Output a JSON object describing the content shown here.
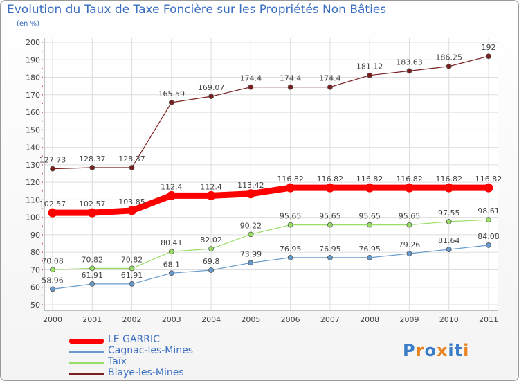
{
  "title": "Evolution du Taux de Taxe Foncière sur les Propriétés Non Bâties",
  "unit": "(en %)",
  "logo": {
    "text": "Proxiti",
    "letters": [
      "P",
      "r",
      "o",
      "x",
      "i",
      "t",
      "i"
    ],
    "colors": [
      "#3a7ec8",
      "#e8821e",
      "#3a7ec8",
      "#e8821e",
      "#3a7ec8",
      "#3a7ec8",
      "#e8821e"
    ]
  },
  "chart_data": {
    "type": "line",
    "x": [
      "2000",
      "2001",
      "2002",
      "2003",
      "2004",
      "2005",
      "2006",
      "2007",
      "2008",
      "2009",
      "2010",
      "2011"
    ],
    "ylim": [
      50,
      200
    ],
    "yticks": [
      "50",
      "60",
      "70",
      "80",
      "90",
      "100",
      "110",
      "120",
      "130",
      "140",
      "150",
      "160",
      "170",
      "180",
      "190",
      "200"
    ],
    "grid": true,
    "legend_position": "bottom-left",
    "series": [
      {
        "name": "Blaye-les-Mines",
        "color": "#7a1f1f",
        "values": [
          127.73,
          128.37,
          128.37,
          165.59,
          169.07,
          174.4,
          174.4,
          174.4,
          181.12,
          183.63,
          186.25,
          192
        ],
        "labels": [
          "127.73",
          "128.37",
          "128.37",
          "165.59",
          "169.07",
          "174.4",
          "174.4",
          "174.4",
          "181.12",
          "183.63",
          "186.25",
          "192"
        ]
      },
      {
        "name": "LE GARRIC",
        "color": "#ff0000",
        "values": [
          102.57,
          102.57,
          103.85,
          112.4,
          112.4,
          113.42,
          116.82,
          116.82,
          116.82,
          116.82,
          116.82,
          116.82
        ],
        "labels": [
          "102.57",
          "102.57",
          "103.85",
          "112.4",
          "112.4",
          "113.42",
          "116.82",
          "116.82",
          "116.82",
          "116.82",
          "116.82",
          "116.82"
        ]
      },
      {
        "name": "Taïx",
        "color": "#99dd66",
        "values": [
          70.08,
          70.82,
          70.82,
          80.41,
          82.02,
          90.22,
          95.65,
          95.65,
          95.65,
          95.65,
          97.55,
          98.61
        ],
        "labels": [
          "70.08",
          "70.82",
          "70.82",
          "80.41",
          "82.02",
          "90.22",
          "95.65",
          "95.65",
          "95.65",
          "95.65",
          "97.55",
          "98.61"
        ]
      },
      {
        "name": "Cagnac-les-Mines",
        "color": "#6699cc",
        "values": [
          58.96,
          61.91,
          61.91,
          68.1,
          69.8,
          73.99,
          76.95,
          76.95,
          76.95,
          79.26,
          81.64,
          84.08
        ],
        "labels": [
          "58.96",
          "61.91",
          "61.91",
          "68.1",
          "69.8",
          "73.99",
          "76.95",
          "76.95",
          "76.95",
          "79.26",
          "81.64",
          "84.08"
        ]
      }
    ],
    "legend": [
      "LE GARRIC",
      "Cagnac-les-Mines",
      "Taïx",
      "Blaye-les-Mines"
    ]
  }
}
